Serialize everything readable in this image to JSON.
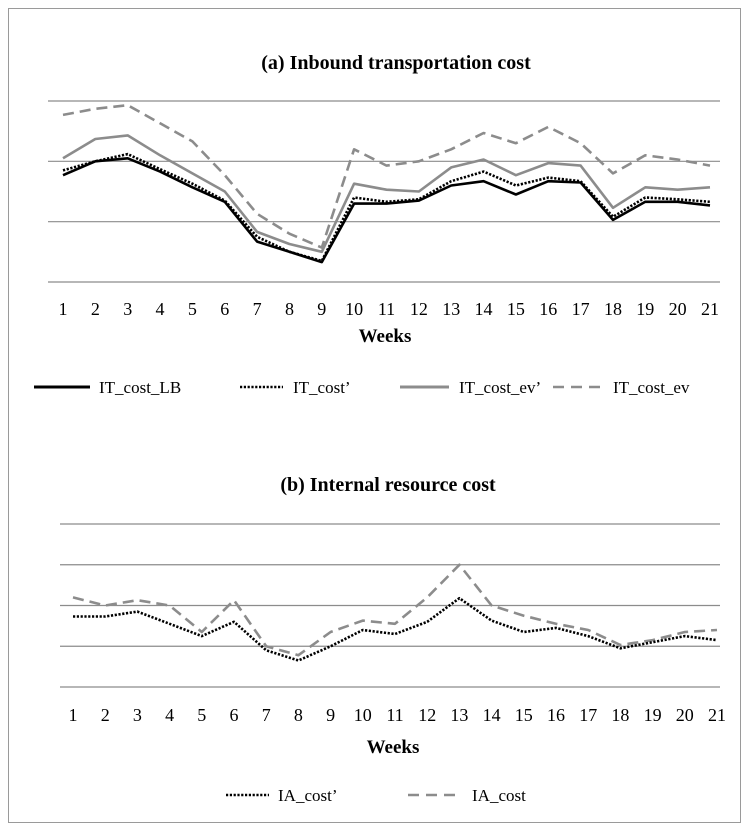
{
  "chart_data": [
    {
      "type": "line",
      "title": "(a) Inbound transportation cost",
      "xlabel": "Weeks",
      "ylabel": "",
      "categories": [
        "1",
        "2",
        "3",
        "4",
        "5",
        "6",
        "7",
        "8",
        "9",
        "10",
        "11",
        "12",
        "13",
        "14",
        "15",
        "16",
        "17",
        "18",
        "19",
        "20",
        "21"
      ],
      "ylim": [
        0,
        3
      ],
      "gridlines": [
        0,
        1,
        2,
        3
      ],
      "y_tick_labels_shown": false,
      "legend_position": "bottom",
      "series": [
        {
          "name": "IT_cost_LB",
          "style": "solid",
          "color": "#000000",
          "values": [
            1.77,
            2.0,
            2.05,
            1.83,
            1.57,
            1.33,
            0.67,
            0.5,
            0.33,
            1.3,
            1.3,
            1.35,
            1.6,
            1.67,
            1.45,
            1.67,
            1.65,
            1.03,
            1.33,
            1.33,
            1.27
          ]
        },
        {
          "name": "IT_cost’",
          "style": "dotted",
          "color": "#000000",
          "values": [
            1.85,
            2.0,
            2.12,
            1.87,
            1.63,
            1.35,
            0.75,
            0.5,
            0.35,
            1.4,
            1.33,
            1.37,
            1.67,
            1.83,
            1.6,
            1.73,
            1.67,
            1.08,
            1.4,
            1.37,
            1.33
          ]
        },
        {
          "name": "IT_cost_ev’",
          "style": "solid",
          "color": "#8c8c8c",
          "values": [
            2.05,
            2.37,
            2.43,
            2.1,
            1.8,
            1.5,
            0.83,
            0.63,
            0.5,
            1.63,
            1.53,
            1.5,
            1.9,
            2.03,
            1.77,
            1.97,
            1.93,
            1.23,
            1.57,
            1.53,
            1.57
          ]
        },
        {
          "name": "IT_cost_ev",
          "style": "dashed",
          "color": "#8c8c8c",
          "values": [
            2.77,
            2.87,
            2.93,
            2.63,
            2.33,
            1.77,
            1.13,
            0.8,
            0.57,
            2.2,
            1.93,
            2.0,
            2.2,
            2.47,
            2.3,
            2.57,
            2.3,
            1.8,
            2.1,
            2.03,
            1.93
          ]
        }
      ]
    },
    {
      "type": "line",
      "title": "(b) Internal resource cost",
      "xlabel": "Weeks",
      "ylabel": "",
      "categories": [
        "1",
        "2",
        "3",
        "4",
        "5",
        "6",
        "7",
        "8",
        "9",
        "10",
        "11",
        "12",
        "13",
        "14",
        "15",
        "16",
        "17",
        "18",
        "19",
        "20",
        "21"
      ],
      "ylim": [
        0,
        4
      ],
      "gridlines": [
        0,
        1,
        2,
        3,
        4
      ],
      "y_tick_labels_shown": false,
      "legend_position": "bottom",
      "series": [
        {
          "name": "IA_cost’",
          "style": "dotted",
          "color": "#000000",
          "values": [
            1.73,
            1.73,
            1.85,
            1.55,
            1.25,
            1.6,
            0.9,
            0.65,
            1.0,
            1.4,
            1.3,
            1.6,
            2.18,
            1.63,
            1.35,
            1.45,
            1.25,
            0.95,
            1.1,
            1.25,
            1.15
          ]
        },
        {
          "name": "IA_cost",
          "style": "dashed",
          "color": "#8c8c8c",
          "values": [
            2.2,
            2.0,
            2.13,
            2.0,
            1.35,
            2.13,
            1.0,
            0.78,
            1.35,
            1.63,
            1.55,
            2.2,
            3.0,
            2.0,
            1.75,
            1.55,
            1.4,
            1.03,
            1.15,
            1.35,
            1.4
          ]
        }
      ]
    }
  ]
}
